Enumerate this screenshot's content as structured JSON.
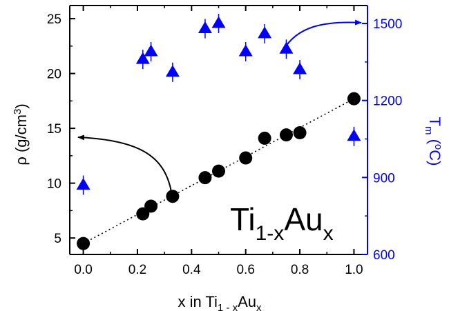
{
  "chart_data": {
    "type": "scatter",
    "xaxis": {
      "label_main": "x in Ti",
      "label_sub1": "1 - x",
      "label_mid": "Au",
      "label_sub2": "x",
      "range": [
        -0.05,
        1.05
      ],
      "ticks": [
        0.0,
        0.2,
        0.4,
        0.6,
        0.8,
        1.0
      ],
      "tick_labels": [
        "0.0",
        "0.2",
        "0.4",
        "0.6",
        "0.8",
        "1.0"
      ]
    },
    "yaxis_left": {
      "label_main": "ρ (g/cm",
      "label_sup": "3",
      "label_end": ")",
      "range": [
        3.5,
        26.2
      ],
      "ticks": [
        5,
        10,
        15,
        20,
        25
      ],
      "tick_labels": [
        "5",
        "10",
        "15",
        "20",
        "25"
      ],
      "color": "#000000"
    },
    "yaxis_right": {
      "label_main": "T",
      "label_sub": "m",
      "label_paren_open": " (",
      "label_sup": "o",
      "label_end": "C)",
      "range": [
        600,
        1570
      ],
      "ticks": [
        600,
        900,
        1200,
        1500
      ],
      "tick_labels": [
        "600",
        "900",
        "1200",
        "1500"
      ],
      "color": "#0000ff"
    },
    "annotation": {
      "main": "Ti",
      "sub1": "1-x",
      "mid": "Au",
      "sub2": "x"
    },
    "series": [
      {
        "marker": "circle",
        "color": "#000000",
        "axis": "left",
        "x": [
          0.0,
          0.22,
          0.25,
          0.33,
          0.45,
          0.5,
          0.6,
          0.67,
          0.75,
          0.8,
          1.0
        ],
        "y": [
          4.5,
          7.2,
          7.9,
          8.8,
          10.5,
          11.1,
          12.3,
          14.1,
          14.4,
          14.6,
          17.7
        ]
      },
      {
        "marker": "triangle",
        "color": "#0000ff",
        "axis": "right",
        "x": [
          0.0,
          0.22,
          0.25,
          0.33,
          0.45,
          0.5,
          0.6,
          0.67,
          0.75,
          0.8,
          1.0
        ],
        "y": [
          870,
          1360,
          1390,
          1310,
          1480,
          1500,
          1390,
          1460,
          1400,
          1320,
          1060
        ]
      }
    ],
    "trend_line": {
      "x": [
        0.0,
        1.0
      ],
      "y": [
        4.5,
        17.7
      ],
      "style": "dotted",
      "color": "#000000"
    }
  }
}
